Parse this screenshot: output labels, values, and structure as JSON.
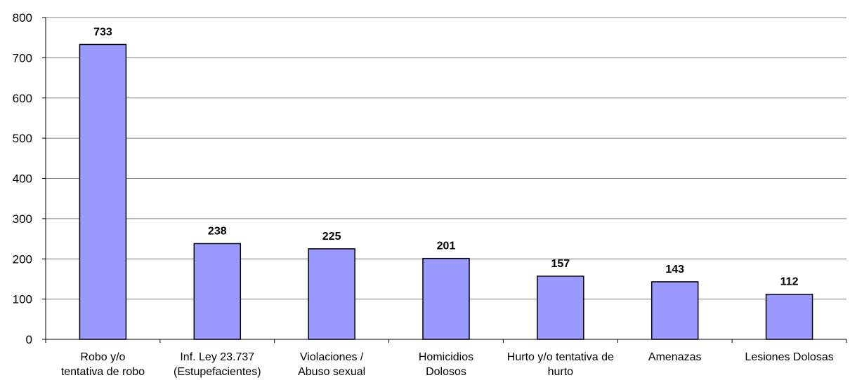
{
  "chart_data": {
    "type": "bar",
    "categories": [
      [
        "Robo y/o",
        "tentativa de robo"
      ],
      [
        "Inf. Ley 23.737",
        "(Estupefacientes)"
      ],
      [
        "Violaciones /",
        "Abuso sexual"
      ],
      [
        "Homicidios",
        "Dolosos"
      ],
      [
        "Hurto y/o tentativa de",
        "hurto"
      ],
      [
        "Amenazas"
      ],
      [
        "Lesiones Dolosas"
      ]
    ],
    "values": [
      733,
      238,
      225,
      201,
      157,
      143,
      112
    ],
    "data_labels": [
      "733",
      "238",
      "225",
      "201",
      "157",
      "143",
      "112"
    ],
    "y_ticks": [
      0,
      100,
      200,
      300,
      400,
      500,
      600,
      700,
      800
    ],
    "ylim": [
      0,
      800
    ],
    "grid": true,
    "bar_color": "#9999ff",
    "title": "",
    "xlabel": "",
    "ylabel": ""
  }
}
